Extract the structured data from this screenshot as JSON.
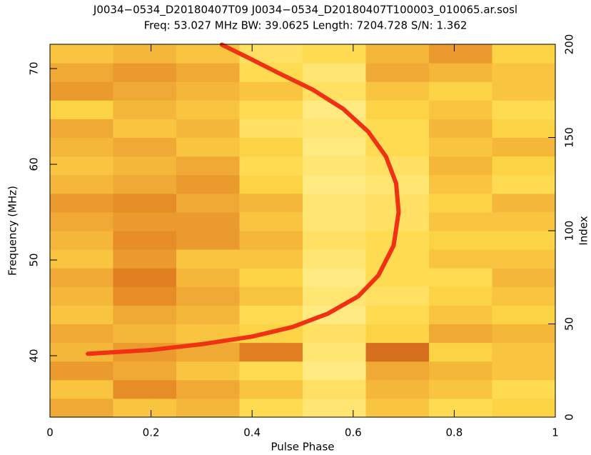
{
  "chart_data": {
    "type": "heatmap",
    "title": "J0034−0534_D20180407T09  J0034−0534_D20180407T100003_010065.ar.sosl",
    "subtitle": "Freq: 53.027 MHz BW: 39.0625 Length: 7204.728 S/N: 1.362",
    "x_label": "Pulse Phase",
    "y_label": "Frequency (MHz)",
    "y2_label": "Index",
    "xlim": [
      0,
      1
    ],
    "xticks": [
      0,
      0.2,
      0.4,
      0.6,
      0.8,
      1
    ],
    "ylim": [
      33.58,
      72.54
    ],
    "yticks": [
      40,
      50,
      60,
      70
    ],
    "y2lim": [
      0,
      200
    ],
    "y2ticks": [
      0,
      50,
      100,
      150,
      200
    ],
    "colormap": [
      "#6e1000",
      "#e07a20",
      "#ffd848",
      "#fff8b0"
    ],
    "x_bins": [
      0,
      0.125,
      0.25,
      0.375,
      0.5,
      0.625,
      0.75,
      0.875,
      1
    ],
    "y_bins": [
      0,
      10,
      20,
      30,
      40,
      50,
      60,
      70,
      80,
      90,
      100,
      110,
      120,
      130,
      140,
      150,
      160,
      170,
      180,
      190,
      200
    ],
    "z": [
      [
        0.5,
        0.6,
        0.55,
        0.7,
        0.8,
        0.6,
        0.7,
        0.65
      ],
      [
        0.6,
        0.4,
        0.5,
        0.6,
        0.75,
        0.55,
        0.6,
        0.7
      ],
      [
        0.45,
        0.5,
        0.6,
        0.7,
        0.85,
        0.5,
        0.55,
        0.6
      ],
      [
        0.55,
        0.45,
        0.5,
        0.35,
        0.8,
        0.3,
        0.65,
        0.6
      ],
      [
        0.5,
        0.55,
        0.6,
        0.65,
        0.75,
        0.65,
        0.5,
        0.55
      ],
      [
        0.6,
        0.5,
        0.55,
        0.7,
        0.85,
        0.7,
        0.6,
        0.65
      ],
      [
        0.55,
        0.4,
        0.5,
        0.6,
        0.8,
        0.75,
        0.65,
        0.6
      ],
      [
        0.5,
        0.35,
        0.55,
        0.65,
        0.85,
        0.7,
        0.7,
        0.55
      ],
      [
        0.6,
        0.45,
        0.6,
        0.6,
        0.8,
        0.7,
        0.6,
        0.6
      ],
      [
        0.55,
        0.4,
        0.45,
        0.55,
        0.75,
        0.7,
        0.65,
        0.65
      ],
      [
        0.5,
        0.45,
        0.45,
        0.6,
        0.8,
        0.75,
        0.6,
        0.6
      ],
      [
        0.45,
        0.4,
        0.5,
        0.55,
        0.8,
        0.75,
        0.65,
        0.55
      ],
      [
        0.55,
        0.5,
        0.45,
        0.65,
        0.85,
        0.8,
        0.6,
        0.7
      ],
      [
        0.6,
        0.55,
        0.5,
        0.7,
        0.8,
        0.75,
        0.55,
        0.65
      ],
      [
        0.55,
        0.5,
        0.6,
        0.65,
        0.85,
        0.7,
        0.6,
        0.55
      ],
      [
        0.5,
        0.6,
        0.55,
        0.75,
        0.8,
        0.7,
        0.55,
        0.65
      ],
      [
        0.65,
        0.55,
        0.6,
        0.7,
        0.85,
        0.65,
        0.6,
        0.7
      ],
      [
        0.45,
        0.5,
        0.55,
        0.6,
        0.75,
        0.6,
        0.65,
        0.6
      ],
      [
        0.5,
        0.45,
        0.5,
        0.7,
        0.8,
        0.5,
        0.55,
        0.6
      ],
      [
        0.6,
        0.55,
        0.6,
        0.75,
        0.7,
        0.55,
        0.45,
        0.65
      ]
    ],
    "series": [
      {
        "color": "#f03214",
        "x": [
          0.075,
          0.2,
          0.3,
          0.4,
          0.48,
          0.55,
          0.61,
          0.65,
          0.68,
          0.69,
          0.685,
          0.665,
          0.63,
          0.58,
          0.52,
          0.45,
          0.39,
          0.34
        ],
        "y": [
          40.2,
          40.6,
          41.2,
          42.0,
          43.0,
          44.4,
          46.2,
          48.4,
          51.5,
          55.0,
          58.0,
          60.8,
          63.4,
          65.8,
          67.8,
          69.6,
          71.2,
          72.5
        ]
      }
    ]
  }
}
